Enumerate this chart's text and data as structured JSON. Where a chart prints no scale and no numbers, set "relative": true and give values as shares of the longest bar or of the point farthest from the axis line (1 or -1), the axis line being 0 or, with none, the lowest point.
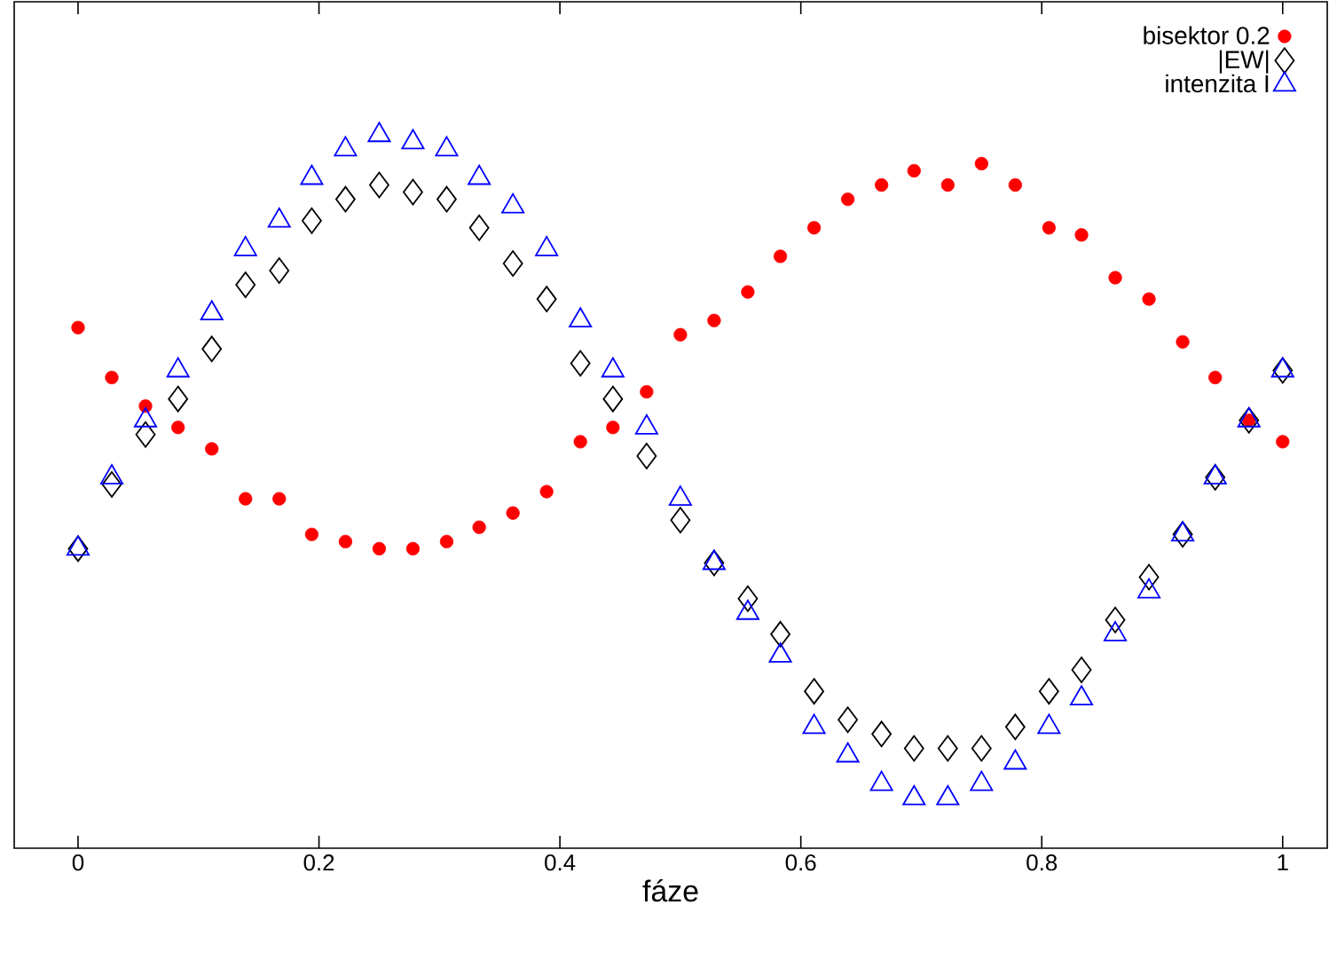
{
  "chart_data": {
    "type": "scatter",
    "xlabel": "fáze",
    "relative": true,
    "xlim": [
      -0.053,
      1.037
    ],
    "xticks": [
      0,
      0.2,
      0.4,
      0.6,
      0.8,
      1
    ],
    "legend": "top right",
    "x": [
      0,
      0.028,
      0.056,
      0.083,
      0.111,
      0.139,
      0.167,
      0.194,
      0.222,
      0.25,
      0.278,
      0.306,
      0.333,
      0.361,
      0.389,
      0.417,
      0.444,
      0.472,
      0.5,
      0.528,
      0.556,
      0.583,
      0.611,
      0.639,
      0.667,
      0.694,
      0.722,
      0.75,
      0.778,
      0.806,
      0.833,
      0.861,
      0.889,
      0.917,
      0.944,
      0.972,
      1
    ],
    "series": [
      {
        "name": "bisektor 0.2",
        "color": "#ff0000",
        "marker": "circle",
        "values": [
          0.73,
          0.66,
          0.62,
          0.59,
          0.56,
          0.49,
          0.49,
          0.44,
          0.43,
          0.42,
          0.42,
          0.43,
          0.45,
          0.47,
          0.5,
          0.57,
          0.59,
          0.64,
          0.72,
          0.74,
          0.78,
          0.83,
          0.87,
          0.91,
          0.93,
          0.95,
          0.93,
          0.96,
          0.93,
          0.87,
          0.86,
          0.8,
          0.77,
          0.71,
          0.66,
          0.6,
          0.57
        ]
      },
      {
        "name": "|EW|",
        "color": "#000000",
        "marker": "diamond",
        "values": [
          0.42,
          0.51,
          0.58,
          0.63,
          0.7,
          0.79,
          0.81,
          0.88,
          0.91,
          0.93,
          0.92,
          0.91,
          0.87,
          0.82,
          0.77,
          0.68,
          0.63,
          0.55,
          0.46,
          0.4,
          0.35,
          0.3,
          0.22,
          0.18,
          0.16,
          0.14,
          0.14,
          0.14,
          0.17,
          0.22,
          0.25,
          0.32,
          0.38,
          0.44,
          0.52,
          0.6,
          0.67
        ]
      },
      {
        "name": "intenzita I",
        "color": "#0000ff",
        "marker": "triangle",
        "values": [
          0.42,
          0.52,
          0.6,
          0.67,
          0.75,
          0.84,
          0.88,
          0.94,
          0.98,
          1.0,
          0.99,
          0.98,
          0.94,
          0.9,
          0.84,
          0.74,
          0.67,
          0.59,
          0.49,
          0.4,
          0.33,
          0.27,
          0.17,
          0.13,
          0.09,
          0.07,
          0.07,
          0.09,
          0.12,
          0.17,
          0.21,
          0.3,
          0.36,
          0.44,
          0.52,
          0.6,
          0.67
        ]
      }
    ]
  }
}
